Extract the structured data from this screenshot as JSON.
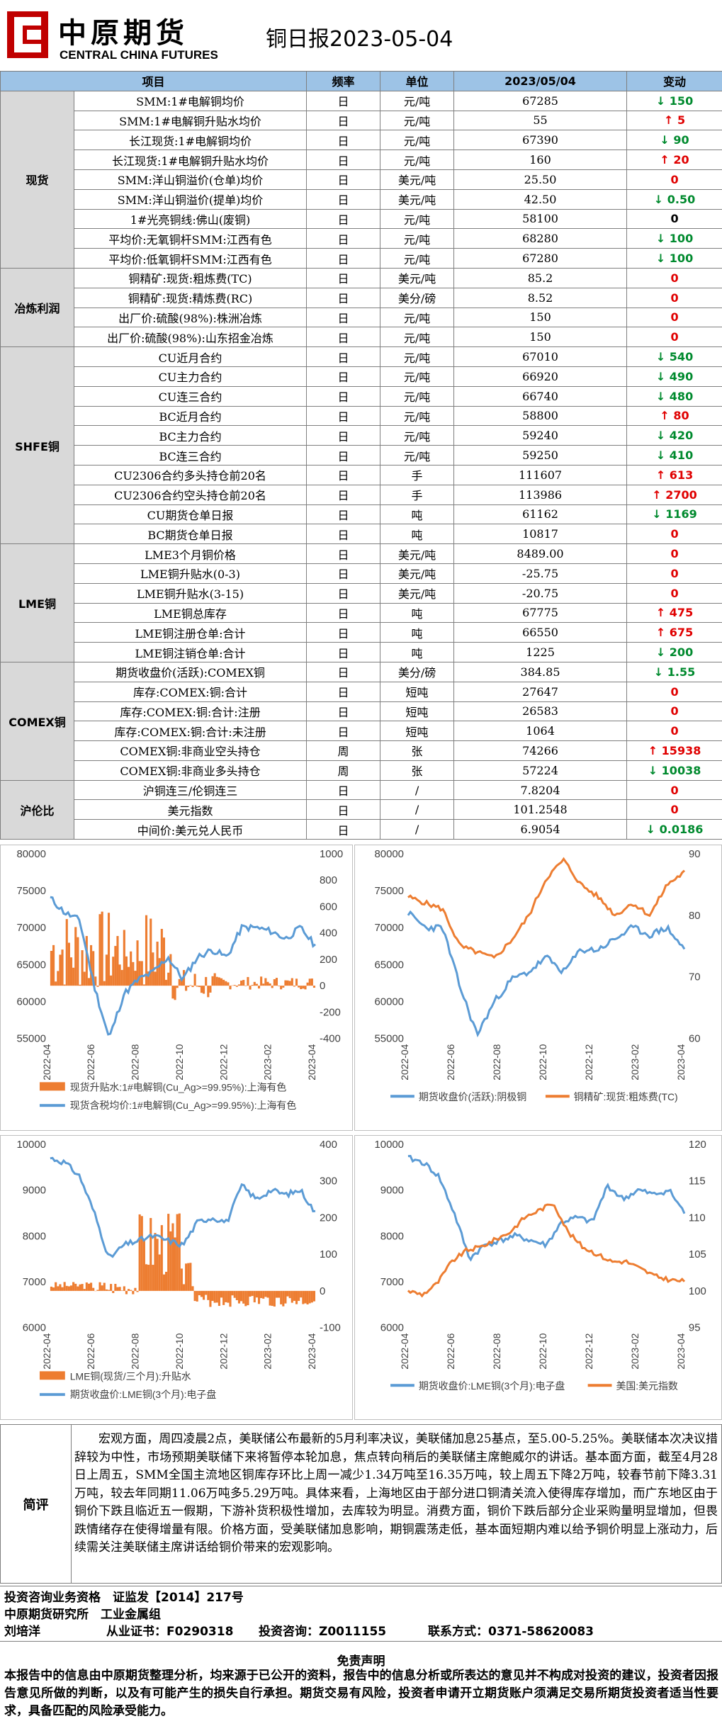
{
  "header": {
    "logo_cn": "中原期货",
    "logo_en": "CENTRAL CHINA FUTURES",
    "title": "铜日报2023-05-04"
  },
  "columns": [
    "项目",
    "频率",
    "单位",
    "2023/05/04",
    "变动"
  ],
  "groups": [
    {
      "name": "现货",
      "rows": [
        {
          "item": "SMM:1#电解铜均价",
          "freq": "日",
          "unit": "元/吨",
          "value": "67285",
          "arrow": "↓",
          "change": "150",
          "dir": "dn"
        },
        {
          "item": "SMM:1#电解铜升贴水均价",
          "freq": "日",
          "unit": "元/吨",
          "value": "55",
          "arrow": "↑",
          "change": "5",
          "dir": "up"
        },
        {
          "item": "长江现货:1#电解铜均价",
          "freq": "日",
          "unit": "元/吨",
          "value": "67390",
          "arrow": "↓",
          "change": "90",
          "dir": "dn"
        },
        {
          "item": "长江现货:1#电解铜升贴水均价",
          "freq": "日",
          "unit": "元/吨",
          "value": "160",
          "arrow": "↑",
          "change": "20",
          "dir": "up"
        },
        {
          "item": "SMM:洋山铜溢价(仓单)均价",
          "freq": "日",
          "unit": "美元/吨",
          "value": "25.50",
          "arrow": "",
          "change": "0",
          "dir": "zero"
        },
        {
          "item": "SMM:洋山铜溢价(提单)均价",
          "freq": "日",
          "unit": "美元/吨",
          "value": "42.50",
          "arrow": "↓",
          "change": "0.50",
          "dir": "dn"
        },
        {
          "item": "1#光亮铜线:佛山(废铜)",
          "freq": "日",
          "unit": "元/吨",
          "value": "58100",
          "arrow": "",
          "change": "0",
          "dir": "blk"
        },
        {
          "item": "平均价:无氧铜杆SMM:江西有色",
          "freq": "日",
          "unit": "元/吨",
          "value": "68280",
          "arrow": "↓",
          "change": "100",
          "dir": "dn"
        },
        {
          "item": "平均价:低氧铜杆SMM:江西有色",
          "freq": "日",
          "unit": "元/吨",
          "value": "67280",
          "arrow": "↓",
          "change": "100",
          "dir": "dn"
        }
      ]
    },
    {
      "name": "冶炼利润",
      "rows": [
        {
          "item": "铜精矿:现货:粗炼费(TC)",
          "freq": "日",
          "unit": "美元/吨",
          "value": "85.2",
          "arrow": "",
          "change": "0",
          "dir": "zero"
        },
        {
          "item": "铜精矿:现货:精炼费(RC)",
          "freq": "日",
          "unit": "美分/磅",
          "value": "8.52",
          "arrow": "",
          "change": "0",
          "dir": "zero"
        },
        {
          "item": "出厂价:硫酸(98%):株洲冶炼",
          "freq": "日",
          "unit": "元/吨",
          "value": "150",
          "arrow": "",
          "change": "0",
          "dir": "zero"
        },
        {
          "item": "出厂价:硫酸(98%):山东招金冶炼",
          "freq": "日",
          "unit": "元/吨",
          "value": "150",
          "arrow": "",
          "change": "0",
          "dir": "zero"
        }
      ]
    },
    {
      "name": "SHFE铜",
      "rows": [
        {
          "item": "CU近月合约",
          "freq": "日",
          "unit": "元/吨",
          "value": "67010",
          "arrow": "↓",
          "change": "540",
          "dir": "dn"
        },
        {
          "item": "CU主力合约",
          "freq": "日",
          "unit": "元/吨",
          "value": "66920",
          "arrow": "↓",
          "change": "490",
          "dir": "dn"
        },
        {
          "item": "CU连三合约",
          "freq": "日",
          "unit": "元/吨",
          "value": "66740",
          "arrow": "↓",
          "change": "480",
          "dir": "dn"
        },
        {
          "item": "BC近月合约",
          "freq": "日",
          "unit": "元/吨",
          "value": "58800",
          "arrow": "↑",
          "change": "80",
          "dir": "up"
        },
        {
          "item": "BC主力合约",
          "freq": "日",
          "unit": "元/吨",
          "value": "59240",
          "arrow": "↓",
          "change": "420",
          "dir": "dn"
        },
        {
          "item": "BC连三合约",
          "freq": "日",
          "unit": "元/吨",
          "value": "59250",
          "arrow": "↓",
          "change": "410",
          "dir": "dn"
        },
        {
          "item": "CU2306合约多头持仓前20名",
          "freq": "日",
          "unit": "手",
          "value": "111607",
          "arrow": "↑",
          "change": "613",
          "dir": "up"
        },
        {
          "item": "CU2306合约空头持仓前20名",
          "freq": "日",
          "unit": "手",
          "value": "113986",
          "arrow": "↑",
          "change": "2700",
          "dir": "up"
        },
        {
          "item": "CU期货仓单日报",
          "freq": "日",
          "unit": "吨",
          "value": "61162",
          "arrow": "↓",
          "change": "1169",
          "dir": "dn"
        },
        {
          "item": "BC期货仓单日报",
          "freq": "日",
          "unit": "吨",
          "value": "10817",
          "arrow": "",
          "change": "0",
          "dir": "zero"
        }
      ]
    },
    {
      "name": "LME铜",
      "rows": [
        {
          "item": "LME3个月铜价格",
          "freq": "日",
          "unit": "美元/吨",
          "value": "8489.00",
          "arrow": "",
          "change": "0",
          "dir": "zero"
        },
        {
          "item": "LME铜升贴水(0-3)",
          "freq": "日",
          "unit": "美元/吨",
          "value": "-25.75",
          "arrow": "",
          "change": "0",
          "dir": "zero"
        },
        {
          "item": "LME铜升贴水(3-15)",
          "freq": "日",
          "unit": "美元/吨",
          "value": "-20.75",
          "arrow": "",
          "change": "0",
          "dir": "zero"
        },
        {
          "item": "LME铜总库存",
          "freq": "日",
          "unit": "吨",
          "value": "67775",
          "arrow": "↑",
          "change": "475",
          "dir": "up"
        },
        {
          "item": "LME铜注册仓单:合计",
          "freq": "日",
          "unit": "吨",
          "value": "66550",
          "arrow": "↑",
          "change": "675",
          "dir": "up"
        },
        {
          "item": "LME铜注销仓单:合计",
          "freq": "日",
          "unit": "吨",
          "value": "1225",
          "arrow": "↓",
          "change": "200",
          "dir": "dn"
        }
      ]
    },
    {
      "name": "COMEX铜",
      "rows": [
        {
          "item": "期货收盘价(活跃):COMEX铜",
          "freq": "日",
          "unit": "美分/磅",
          "value": "384.85",
          "arrow": "↓",
          "change": "1.55",
          "dir": "dn"
        },
        {
          "item": "库存:COMEX:铜:合计",
          "freq": "日",
          "unit": "短吨",
          "value": "27647",
          "arrow": "",
          "change": "0",
          "dir": "zero"
        },
        {
          "item": "库存:COMEX:铜:合计:注册",
          "freq": "日",
          "unit": "短吨",
          "value": "26583",
          "arrow": "",
          "change": "0",
          "dir": "zero"
        },
        {
          "item": "库存:COMEX:铜:合计:未注册",
          "freq": "日",
          "unit": "短吨",
          "value": "1064",
          "arrow": "",
          "change": "0",
          "dir": "zero"
        },
        {
          "item": "COMEX铜:非商业空头持仓",
          "freq": "周",
          "unit": "张",
          "value": "74266",
          "arrow": "↑",
          "change": "15938",
          "dir": "up"
        },
        {
          "item": "COMEX铜:非商业多头持仓",
          "freq": "周",
          "unit": "张",
          "value": "57224",
          "arrow": "↓",
          "change": "10038",
          "dir": "dn"
        }
      ]
    },
    {
      "name": "沪伦比",
      "rows": [
        {
          "item": "沪铜连三/伦铜连三",
          "freq": "日",
          "unit": "/",
          "value": "7.8204",
          "arrow": "",
          "change": "0",
          "dir": "zero"
        },
        {
          "item": "美元指数",
          "freq": "日",
          "unit": "/",
          "value": "101.2548",
          "arrow": "",
          "change": "0",
          "dir": "zero"
        },
        {
          "item": "中间价:美元兑人民币",
          "freq": "日",
          "unit": "/",
          "value": "6.9054",
          "arrow": "↓",
          "change": "0.0186",
          "dir": "dn"
        }
      ]
    }
  ],
  "chart_data": [
    {
      "type": "line",
      "x": [
        "2022-04",
        "2022-06",
        "2022-08",
        "2022-10",
        "2022-12",
        "2023-02",
        "2023-04"
      ],
      "yleft": [
        55000,
        60000,
        65000,
        70000,
        75000,
        80000
      ],
      "yright": [
        -400,
        -200,
        0,
        200,
        400,
        600,
        800,
        1000
      ],
      "series": [
        {
          "name": "现货升贴水:1#电解铜(Cu_Ag>=99.95%):上海有色",
          "axis": "right",
          "kind": "bar",
          "color": "#ed7d31"
        },
        {
          "name": "现货含税均价:1#电解铜(Cu_Ag>=99.95%):上海有色",
          "axis": "left",
          "kind": "line",
          "color": "#5b9bd5"
        }
      ]
    },
    {
      "type": "line",
      "x": [
        "2022-04",
        "2022-06",
        "2022-08",
        "2022-10",
        "2022-12",
        "2023-02",
        "2023-04"
      ],
      "yleft": [
        55000,
        60000,
        65000,
        70000,
        75000,
        80000
      ],
      "yright": [
        60,
        70,
        80,
        90
      ],
      "series": [
        {
          "name": "期货收盘价(活跃):阴极铜",
          "axis": "left",
          "kind": "line",
          "color": "#5b9bd5"
        },
        {
          "name": "铜精矿:现货:粗炼费(TC)",
          "axis": "right",
          "kind": "line",
          "color": "#ed7d31"
        }
      ]
    },
    {
      "type": "line",
      "x": [
        "2022-04",
        "2022-06",
        "2022-08",
        "2022-10",
        "2022-12",
        "2023-02",
        "2023-04"
      ],
      "yleft": [
        6000,
        7000,
        8000,
        9000,
        10000
      ],
      "yright": [
        -100,
        0,
        100,
        200,
        300,
        400
      ],
      "series": [
        {
          "name": "LME铜(现货/三个月):升贴水",
          "axis": "right",
          "kind": "bar",
          "color": "#ed7d31"
        },
        {
          "name": "期货收盘价:LME铜(3个月):电子盘",
          "axis": "left",
          "kind": "line",
          "color": "#5b9bd5"
        }
      ]
    },
    {
      "type": "line",
      "x": [
        "2022-04",
        "2022-06",
        "2022-08",
        "2022-10",
        "2022-12",
        "2023-02",
        "2023-04"
      ],
      "yleft": [
        6000,
        7000,
        8000,
        9000,
        10000
      ],
      "yright": [
        95,
        100,
        105,
        110,
        115,
        120
      ],
      "series": [
        {
          "name": "期货收盘价:LME铜(3个月):电子盘",
          "axis": "left",
          "kind": "line",
          "color": "#5b9bd5"
        },
        {
          "name": "美国:美元指数",
          "axis": "right",
          "kind": "line",
          "color": "#ed7d31"
        }
      ]
    }
  ],
  "review": {
    "label": "简评",
    "text": "宏观方面，周四凌晨2点，美联储公布最新的5月利率决议，美联储加息25基点，至5.00-5.25%。美联储本次决议措辞较为中性，市场预期美联储下来将暂停本轮加息，焦点转向稍后的美联储主席鲍威尔的讲话。基本面方面，截至4月28日上周五，SMM全国主流地区铜库存环比上周一减少1.34万吨至16.35万吨，较上周五下降2万吨，较春节前下降3.31万吨，较去年同期11.06万吨多5.29万吨。具体来看，上海地区由于部分进口铜清关流入使得库存增加，而广东地区由于铜价下跌且临近五一假期，下游补货积极性增加，去库较为明显。消费方面，铜价下跌后部分企业采购量明显增加，但畏跌情绪存在使得增量有限。价格方面，受美联储加息影响，期铜震荡走低，基本面短期内难以给予铜价明显上涨动力，后续需关注美联储主席讲话给铜价带来的宏观影响。"
  },
  "footer": {
    "line1": "投资咨询业务资格　证监发【2014】217号",
    "line2": "中原期货研究所　工业金属组",
    "analyst": "刘培洋",
    "cert": "从业证书：F0290318",
    "consult": "投资咨询：Z0011155",
    "contact": "联系方式：0371-58620083"
  },
  "disclaimer": {
    "title": "免责声明",
    "text": "本报告中的信息由中原期货整理分析，均来源于已公开的资料，报告中的信息分析或所表达的意见并不构成对投资的建议，投资者因报告意见所做的判断，以及有可能产生的损失自行承担。期货交易有风险，投资者申请开立期货账户须满足交易所期货投资者适当性要求，具备匹配的风险承受能力。"
  }
}
